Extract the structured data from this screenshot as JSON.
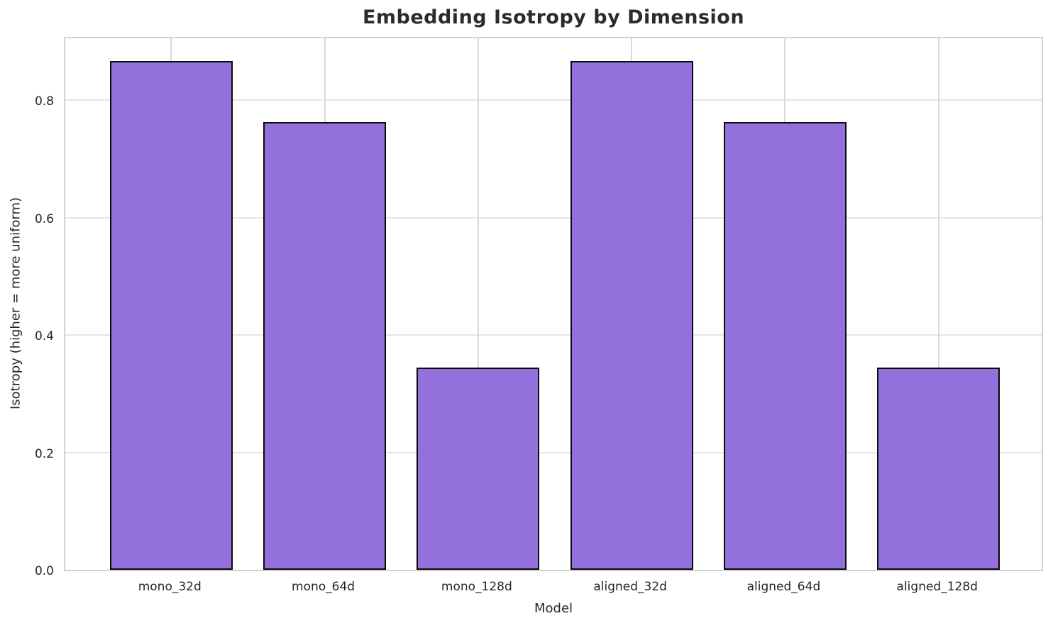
{
  "chart_data": {
    "type": "bar",
    "title": "Embedding Isotropy by Dimension",
    "xlabel": "Model",
    "ylabel": "Isotropy (higher = more uniform)",
    "categories": [
      "mono_32d",
      "mono_64d",
      "mono_128d",
      "aligned_32d",
      "aligned_64d",
      "aligned_128d"
    ],
    "values": [
      0.867,
      0.762,
      0.345,
      0.867,
      0.762,
      0.345
    ],
    "yticks": [
      0.0,
      0.2,
      0.4,
      0.6,
      0.8
    ],
    "ylim": [
      0,
      0.91
    ],
    "grid": true,
    "legend": "none",
    "colors": {
      "bar_fill": "#9370DB",
      "bar_edge": "#0a0a0a",
      "grid_h": "#e6e6e6",
      "grid_v": "#d9d9d9",
      "spine": "#d2d2d2",
      "text": "#262626",
      "background": "#ffffff"
    }
  }
}
